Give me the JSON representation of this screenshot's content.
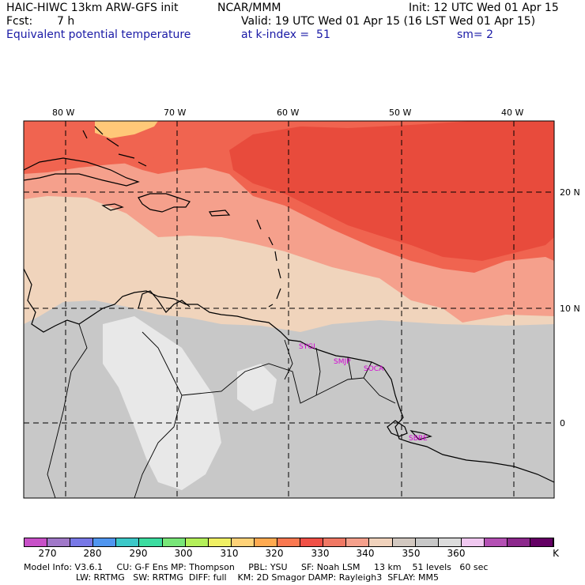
{
  "header": {
    "model": "HAIC-HIWC 13km ARW-GFS init",
    "org": "NCAR/MMM",
    "init": "Init: 12 UTC Wed 01 Apr 15",
    "fcst_label": "Fcst:",
    "fcst_value": "7 h",
    "valid": "Valid: 19 UTC Wed 01 Apr 15 (16 LST Wed 01 Apr 15)",
    "field": "Equivalent potential temperature",
    "level": "at k-index =  51",
    "smooth": "sm= 2"
  },
  "map": {
    "lon_labels": [
      "80 W",
      "70 W",
      "60 W",
      "50 W",
      "40 W"
    ],
    "lat_labels": [
      "20 N",
      "10 N",
      "0"
    ],
    "stations": [
      "SYGI",
      "SMJP",
      "SOCA",
      "SBBE"
    ],
    "colors": {
      "bg": "#c8c8c8",
      "land_light": "#e8e8e8",
      "c335": "#f5a08c",
      "c330": "#f06450",
      "c325": "#e84b3c",
      "c340": "#f0d4bc",
      "c320": "#ffc878"
    }
  },
  "colorbar": {
    "labels": [
      "270",
      "280",
      "290",
      "300",
      "310",
      "320",
      "330",
      "340",
      "350",
      "360",
      "K"
    ],
    "colors": [
      "#c850c8",
      "#a078c8",
      "#7878e6",
      "#5096f0",
      "#3cc8c8",
      "#3cdca0",
      "#78e678",
      "#b4f05a",
      "#f0f064",
      "#ffd278",
      "#ffaa50",
      "#fa7850",
      "#f05046",
      "#f07864",
      "#f5a08c",
      "#f0d2bc",
      "#d2c8c0",
      "#c8c8c8",
      "#dcdcdc",
      "#f0c8f0",
      "#b450b4",
      "#8c288c",
      "#640064"
    ]
  },
  "footer": {
    "line1": "Model Info: V3.6.1     CU: G-F Ens MP: Thompson     PBL: YSU     SF: Noah LSM     13 km    51 levels   60 sec",
    "line2": "LW: RRTMG   SW: RRTMG  DIFF: full    KM: 2D Smagor DAMP: Rayleigh3  SFLAY: MM5"
  }
}
